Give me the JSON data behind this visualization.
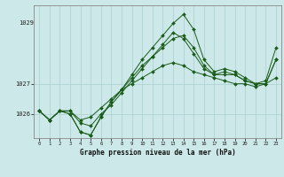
{
  "xlabel": "Graphe pression niveau de la mer (hPa)",
  "background_color": "#cce8e8",
  "plot_bg_color": "#cce8e8",
  "grid_color": "#aacfcf",
  "line_color": "#1a5c1a",
  "marker_color": "#1a5c1a",
  "x_ticks": [
    0,
    1,
    2,
    3,
    4,
    5,
    6,
    7,
    8,
    9,
    10,
    11,
    12,
    13,
    14,
    15,
    16,
    17,
    18,
    19,
    20,
    21,
    22,
    23
  ],
  "ylim": [
    1025.2,
    1029.6
  ],
  "ytick_vals": [
    1026,
    1027
  ],
  "ytick_top": 1029,
  "series": [
    [
      1026.1,
      1025.8,
      1026.1,
      1026.1,
      1025.8,
      1025.9,
      1026.2,
      1026.5,
      1026.8,
      1027.0,
      1027.2,
      1027.4,
      1027.6,
      1027.7,
      1027.6,
      1027.4,
      1027.3,
      1027.2,
      1027.1,
      1027.0,
      1027.0,
      1026.9,
      1027.0,
      1027.2
    ],
    [
      1026.1,
      1025.8,
      1026.1,
      1026.1,
      1025.7,
      1025.6,
      1026.0,
      1026.3,
      1026.7,
      1027.1,
      1027.5,
      1027.9,
      1028.3,
      1028.7,
      1028.5,
      1028.0,
      1027.5,
      1027.3,
      1027.3,
      1027.3,
      1027.1,
      1027.0,
      1027.0,
      1027.8
    ],
    [
      1026.1,
      1025.8,
      1026.1,
      1026.0,
      1025.4,
      1025.3,
      1025.9,
      1026.4,
      1026.8,
      1027.3,
      1027.8,
      1028.2,
      1028.6,
      1029.0,
      1029.3,
      1028.8,
      1027.8,
      1027.4,
      1027.5,
      1027.4,
      1027.2,
      1027.0,
      1027.1,
      1028.2
    ],
    [
      1026.1,
      1025.8,
      1026.1,
      1026.0,
      1025.4,
      1025.3,
      1025.9,
      1026.4,
      1026.8,
      1027.2,
      1027.6,
      1027.9,
      1028.2,
      1028.5,
      1028.6,
      1028.2,
      1027.6,
      1027.3,
      1027.4,
      1027.3,
      1027.1,
      1027.0,
      1027.0,
      1027.8
    ]
  ]
}
